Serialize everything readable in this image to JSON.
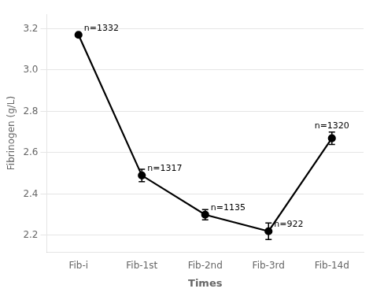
{
  "chart_data": {
    "type": "line",
    "categories": [
      "Fib-i",
      "Fib-1st",
      "Fib-2nd",
      "Fib-3rd",
      "Fib-14d"
    ],
    "values": [
      3.17,
      2.49,
      2.3,
      2.22,
      2.67
    ],
    "errors": [
      0.0,
      0.03,
      0.025,
      0.04,
      0.03
    ],
    "annotations": [
      "n=1332",
      "n=1317",
      "n=1135",
      "n=922",
      "n=1320"
    ],
    "xlabel": "Times",
    "ylabel": "Fibrinogen (g/L)",
    "ylim": [
      2.12,
      3.27
    ],
    "yticks": [
      2.2,
      2.4,
      2.6,
      2.8,
      {
        "value": 3.0,
        "label": "3.0"
      },
      3.2
    ],
    "color": "#000000",
    "marker": "circle",
    "grid": true
  }
}
